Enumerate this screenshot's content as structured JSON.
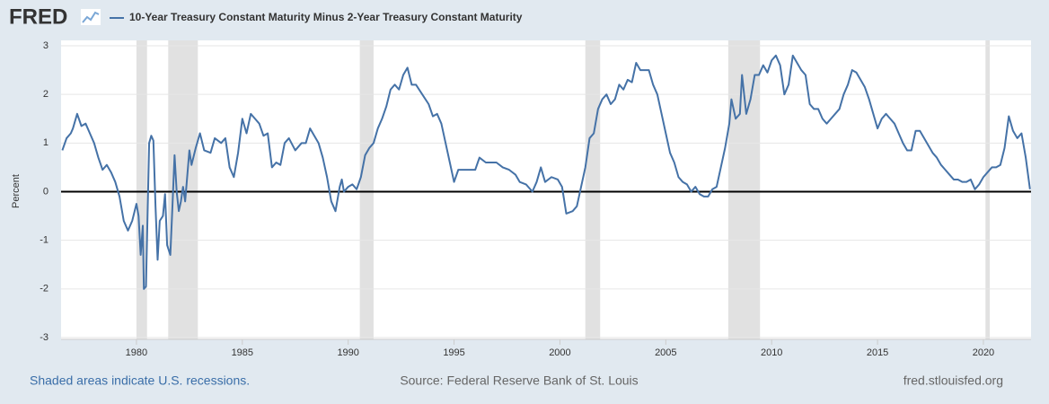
{
  "chart_data": {
    "type": "line",
    "logo": "FRED",
    "y_label": "Percent",
    "series": [
      {
        "name": "10-Year Treasury Constant Maturity Minus 2-Year Treasury Constant Maturity",
        "color": "#4572a7",
        "x": [
          1976.5,
          1976.7,
          1976.9,
          1977.0,
          1977.2,
          1977.4,
          1977.6,
          1977.8,
          1978.0,
          1978.2,
          1978.4,
          1978.6,
          1978.8,
          1979.0,
          1979.2,
          1979.4,
          1979.6,
          1979.8,
          1980.0,
          1980.1,
          1980.2,
          1980.3,
          1980.35,
          1980.45,
          1980.6,
          1980.7,
          1980.8,
          1980.9,
          1981.0,
          1981.1,
          1981.25,
          1981.35,
          1981.45,
          1981.6,
          1981.7,
          1981.8,
          1981.9,
          1982.0,
          1982.1,
          1982.2,
          1982.3,
          1982.5,
          1982.6,
          1982.8,
          1983.0,
          1983.2,
          1983.5,
          1983.7,
          1984.0,
          1984.2,
          1984.4,
          1984.6,
          1984.8,
          1985.0,
          1985.2,
          1985.4,
          1985.6,
          1985.8,
          1986.0,
          1986.2,
          1986.4,
          1986.6,
          1986.8,
          1987.0,
          1987.2,
          1987.5,
          1987.8,
          1988.0,
          1988.2,
          1988.4,
          1988.6,
          1988.8,
          1989.0,
          1989.2,
          1989.4,
          1989.6,
          1989.7,
          1989.8,
          1990.0,
          1990.2,
          1990.4,
          1990.6,
          1990.8,
          1991.0,
          1991.2,
          1991.4,
          1991.6,
          1991.8,
          1992.0,
          1992.2,
          1992.4,
          1992.6,
          1992.8,
          1993.0,
          1993.2,
          1993.5,
          1993.8,
          1994.0,
          1994.2,
          1994.4,
          1994.6,
          1994.8,
          1995.0,
          1995.2,
          1995.5,
          1995.8,
          1996.0,
          1996.2,
          1996.5,
          1996.8,
          1997.0,
          1997.3,
          1997.6,
          1997.9,
          1998.1,
          1998.4,
          1998.7,
          1998.9,
          1999.1,
          1999.3,
          1999.6,
          1999.9,
          2000.1,
          2000.3,
          2000.6,
          2000.8,
          2001.0,
          2001.2,
          2001.4,
          2001.6,
          2001.8,
          2002.0,
          2002.2,
          2002.4,
          2002.6,
          2002.8,
          2003.0,
          2003.2,
          2003.4,
          2003.6,
          2003.8,
          2004.0,
          2004.2,
          2004.4,
          2004.6,
          2004.8,
          2005.0,
          2005.2,
          2005.4,
          2005.6,
          2005.8,
          2006.0,
          2006.2,
          2006.4,
          2006.6,
          2006.8,
          2007.0,
          2007.2,
          2007.4,
          2007.6,
          2007.8,
          2008.0,
          2008.1,
          2008.3,
          2008.5,
          2008.6,
          2008.8,
          2009.0,
          2009.2,
          2009.4,
          2009.6,
          2009.8,
          2010.0,
          2010.2,
          2010.4,
          2010.6,
          2010.8,
          2011.0,
          2011.2,
          2011.4,
          2011.6,
          2011.8,
          2012.0,
          2012.2,
          2012.4,
          2012.6,
          2012.8,
          2013.0,
          2013.2,
          2013.4,
          2013.6,
          2013.8,
          2014.0,
          2014.2,
          2014.4,
          2014.6,
          2014.8,
          2015.0,
          2015.2,
          2015.4,
          2015.6,
          2015.8,
          2016.0,
          2016.2,
          2016.4,
          2016.6,
          2016.8,
          2017.0,
          2017.2,
          2017.4,
          2017.6,
          2017.8,
          2018.0,
          2018.2,
          2018.4,
          2018.6,
          2018.8,
          2019.0,
          2019.2,
          2019.4,
          2019.6,
          2019.8,
          2020.0,
          2020.2,
          2020.4,
          2020.6,
          2020.8,
          2021.0,
          2021.2,
          2021.4,
          2021.6,
          2021.8,
          2022.0,
          2022.2
        ],
        "values": [
          0.85,
          1.1,
          1.2,
          1.3,
          1.6,
          1.35,
          1.4,
          1.2,
          1.0,
          0.7,
          0.45,
          0.55,
          0.4,
          0.2,
          -0.1,
          -0.6,
          -0.8,
          -0.6,
          -0.25,
          -0.5,
          -1.3,
          -0.7,
          -2.0,
          -1.95,
          1.0,
          1.15,
          1.05,
          -0.3,
          -1.4,
          -0.6,
          -0.5,
          -0.05,
          -1.1,
          -1.3,
          -0.3,
          0.75,
          0.0,
          -0.4,
          -0.2,
          0.1,
          -0.2,
          0.85,
          0.55,
          0.9,
          1.2,
          0.85,
          0.8,
          1.1,
          1.0,
          1.1,
          0.5,
          0.3,
          0.8,
          1.5,
          1.2,
          1.6,
          1.5,
          1.4,
          1.15,
          1.2,
          0.5,
          0.6,
          0.55,
          1.0,
          1.1,
          0.85,
          1.0,
          1.0,
          1.3,
          1.15,
          1.0,
          0.7,
          0.3,
          -0.2,
          -0.4,
          0.1,
          0.25,
          0.0,
          0.1,
          0.15,
          0.05,
          0.3,
          0.75,
          0.9,
          1.0,
          1.3,
          1.5,
          1.75,
          2.1,
          2.2,
          2.1,
          2.4,
          2.55,
          2.2,
          2.2,
          2.0,
          1.8,
          1.55,
          1.6,
          1.4,
          1.0,
          0.6,
          0.2,
          0.45,
          0.45,
          0.45,
          0.45,
          0.7,
          0.6,
          0.6,
          0.6,
          0.5,
          0.45,
          0.35,
          0.2,
          0.15,
          0.0,
          0.2,
          0.5,
          0.2,
          0.3,
          0.25,
          0.1,
          -0.45,
          -0.4,
          -0.3,
          0.1,
          0.5,
          1.1,
          1.2,
          1.7,
          1.9,
          2.0,
          1.8,
          1.9,
          2.2,
          2.1,
          2.3,
          2.25,
          2.65,
          2.5,
          2.5,
          2.5,
          2.2,
          2.0,
          1.6,
          1.2,
          0.8,
          0.6,
          0.3,
          0.2,
          0.15,
          0.0,
          0.1,
          -0.05,
          -0.1,
          -0.1,
          0.05,
          0.1,
          0.5,
          0.9,
          1.4,
          1.9,
          1.5,
          1.6,
          2.4,
          1.6,
          1.9,
          2.4,
          2.4,
          2.6,
          2.45,
          2.7,
          2.8,
          2.6,
          2.0,
          2.2,
          2.8,
          2.65,
          2.5,
          2.4,
          1.8,
          1.7,
          1.7,
          1.5,
          1.4,
          1.5,
          1.6,
          1.7,
          2.0,
          2.2,
          2.5,
          2.45,
          2.3,
          2.15,
          1.9,
          1.6,
          1.3,
          1.5,
          1.6,
          1.5,
          1.4,
          1.2,
          1.0,
          0.85,
          0.85,
          1.25,
          1.25,
          1.1,
          0.95,
          0.8,
          0.7,
          0.55,
          0.45,
          0.35,
          0.25,
          0.25,
          0.2,
          0.2,
          0.25,
          0.05,
          0.15,
          0.3,
          0.4,
          0.5,
          0.5,
          0.55,
          0.9,
          1.55,
          1.25,
          1.1,
          1.2,
          0.7,
          0.05
        ]
      }
    ],
    "recessions": [
      [
        1980.0,
        1980.5
      ],
      [
        1981.5,
        1982.9
      ],
      [
        1990.55,
        1991.2
      ],
      [
        2001.2,
        2001.9
      ],
      [
        2007.95,
        2009.45
      ],
      [
        2020.1,
        2020.3
      ]
    ],
    "recession_color": "#e1e1e1",
    "reference_line": 0,
    "xlim": [
      1976.44,
      2022.25
    ],
    "xticks": [
      1980,
      1985,
      1990,
      1995,
      2000,
      2005,
      2010,
      2015,
      2020
    ],
    "ylim": [
      -3,
      3
    ],
    "yticks": [
      -3,
      -2,
      -1,
      0,
      1,
      2,
      3
    ],
    "grid": true,
    "footer_left": "Shaded areas indicate U.S. recessions.",
    "footer_center": "Source: Federal Reserve Bank of St. Louis",
    "footer_right": "fred.stlouisfed.org"
  }
}
